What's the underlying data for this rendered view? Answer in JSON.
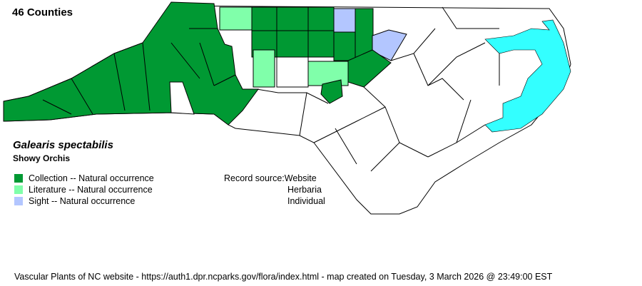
{
  "header": {
    "county_count": "46 Counties"
  },
  "species": {
    "scientific_name": "Galearis spectabilis",
    "common_name": "Showy Orchis"
  },
  "legend": [
    {
      "label": "Collection -- Natural occurrence",
      "color": "#009933"
    },
    {
      "label": "Literature -- Natural occurrence",
      "color": "#80FFAA"
    },
    {
      "label": "Sight -- Natural occurrence",
      "color": "#B3C6FF"
    }
  ],
  "record_source": {
    "label": "Record source:",
    "values": [
      "Website",
      "Herbaria",
      "Individual"
    ]
  },
  "colors": {
    "water": "#33FFFF",
    "empty_county": "#FFFFFF",
    "border": "#000000"
  },
  "footer": "Vascular Plants of NC website - https://auth1.dpr.ncparks.gov/flora/index.html - map created on Tuesday, 3 March 2026 @ 23:49:00 EST"
}
